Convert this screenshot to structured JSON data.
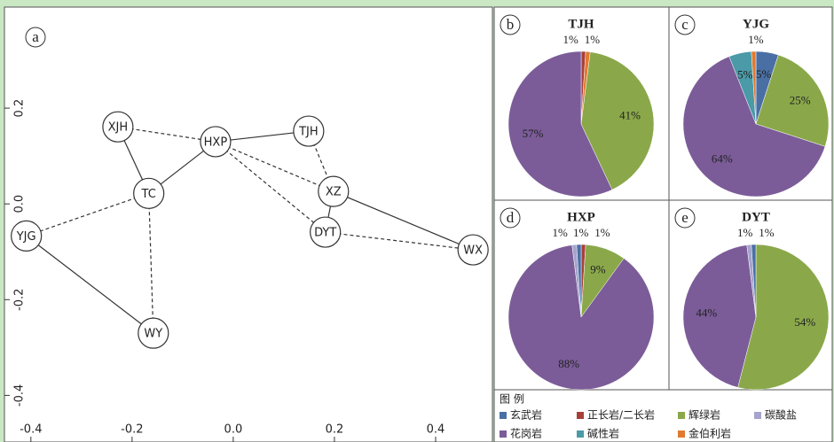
{
  "chart_data": [
    {
      "type": "scatter",
      "panel": "a",
      "labels": [
        "XJH",
        "HXP",
        "TJH",
        "TC",
        "XZ",
        "DYT",
        "YJG",
        "WX",
        "WY"
      ],
      "x": [
        -0.228,
        -0.035,
        0.149,
        -0.167,
        0.198,
        0.182,
        -0.409,
        0.474,
        -0.158
      ],
      "y": [
        0.161,
        0.13,
        0.152,
        0.022,
        0.026,
        -0.059,
        -0.067,
        -0.096,
        -0.27
      ],
      "xlim": [
        -0.44,
        0.5
      ],
      "ylim": [
        -0.44,
        0.4
      ],
      "xticks": [
        -0.4,
        -0.2,
        {
          "value": 0,
          "label": "0.0"
        },
        0.2,
        0.4
      ],
      "yticks": [
        0.2,
        {
          "value": 0,
          "label": "0.0"
        },
        -0.2,
        -0.4
      ]
    },
    {
      "type": "pie",
      "panel": "b",
      "title": "TJH",
      "values": [
        1,
        1,
        41,
        57
      ],
      "value_labels": [
        "1%",
        "1%",
        "41%",
        "57%"
      ],
      "colors": [
        "#a8403a",
        "#e07a30",
        "#8aa84a",
        "#7b5c98"
      ]
    },
    {
      "type": "pie",
      "panel": "c",
      "title": "YJG",
      "values": [
        5,
        25,
        64,
        5,
        1
      ],
      "value_labels": [
        "5%",
        "25%",
        "64%",
        "5%",
        "1%"
      ],
      "colors": [
        "#4a6fa5",
        "#8aa84a",
        "#7b5c98",
        "#4a9aa8",
        "#e07a30"
      ]
    },
    {
      "type": "pie",
      "panel": "d",
      "title": "HXP",
      "values": [
        1,
        9,
        88,
        1,
        1
      ],
      "value_labels": [
        "1%",
        "9%",
        "88%",
        "1%",
        "1%"
      ],
      "colors": [
        "#a8403a",
        "#8aa84a",
        "#7b5c98",
        "#a4a4cc",
        "#4a6fa5"
      ]
    },
    {
      "type": "pie",
      "panel": "e",
      "title": "DYT",
      "values": [
        54,
        44,
        1,
        1
      ],
      "value_labels": [
        "54%",
        "44%",
        "1%",
        "1%"
      ],
      "colors": [
        "#8aa84a",
        "#7b5c98",
        "#a4a4cc",
        "#4a6fa5"
      ]
    },
    {
      "type": "legend",
      "title": "图 例",
      "categories": [
        "玄武岩",
        "正长岩/二长岩",
        "辉绿岩",
        "碳酸盐",
        "花岗岩",
        "碱性岩",
        "金伯利岩"
      ],
      "colors": [
        "#4a6fa5",
        "#a8403a",
        "#8aa84a",
        "#a4a4cc",
        "#7b5c98",
        "#4a9aa8",
        "#e07a30"
      ]
    }
  ]
}
